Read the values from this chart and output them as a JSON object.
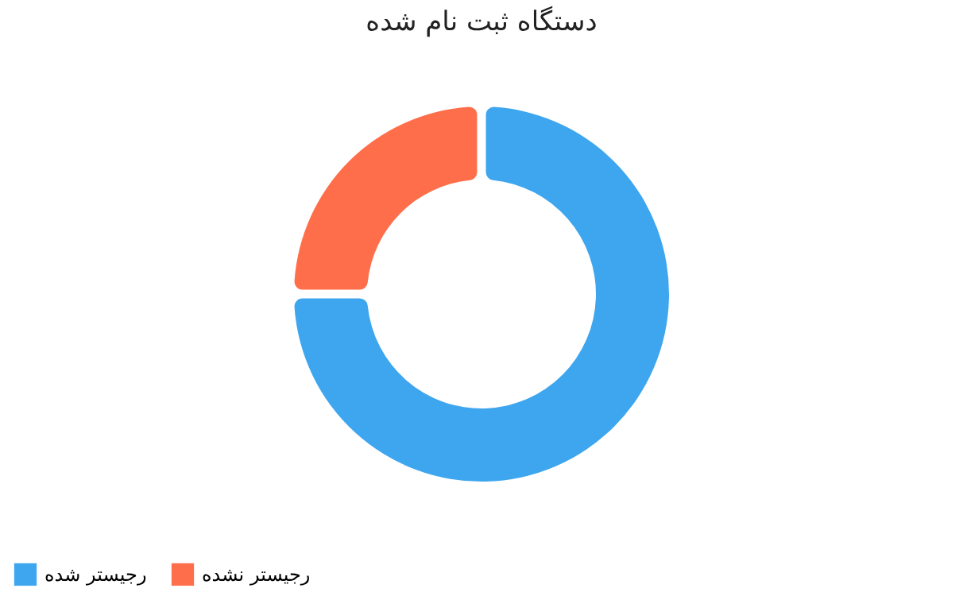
{
  "chart_data": {
    "type": "donut",
    "title": "دستگاه ثبت نام شده",
    "categories": [
      "رجیستر شده",
      "رجیستر نشده"
    ],
    "values": [
      75,
      25
    ],
    "colors": [
      "#3ea6ef",
      "#ff6e4a"
    ],
    "legend": "bottom"
  }
}
